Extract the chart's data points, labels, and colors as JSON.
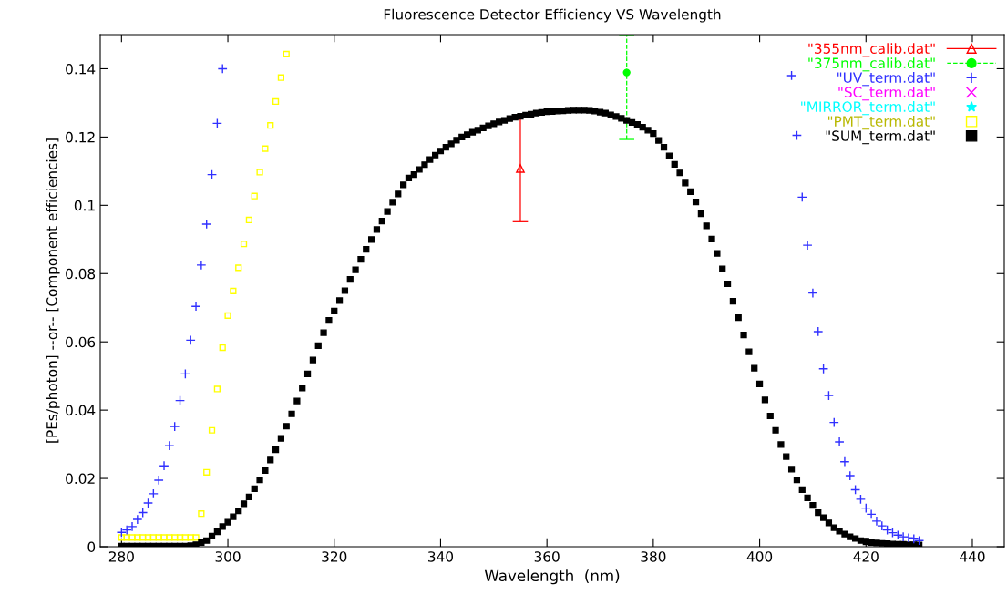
{
  "chart_data": {
    "type": "scatter",
    "title": "Fluorescence Detector Efficiency VS Wavelength",
    "xlabel": "Wavelength  (nm)",
    "ylabel": "[PEs/photon] --or-- [Component efficiencies]",
    "xlim": [
      276,
      446
    ],
    "ylim": [
      0,
      0.15
    ],
    "xticks": [
      280,
      300,
      320,
      340,
      360,
      380,
      400,
      420,
      440
    ],
    "yticks": [
      0,
      0.02,
      0.04,
      0.06,
      0.08,
      0.1,
      0.12,
      0.14
    ],
    "grid": false,
    "legend": "top right",
    "series": [
      {
        "name": "\"355nm_calib.dat\"",
        "color": "#ff0000",
        "marker": "triangle",
        "line_style": "solid",
        "x": [
          355
        ],
        "values": [
          0.1108
        ],
        "errors": [
          0.0156
        ]
      },
      {
        "name": "\"375nm_calib.dat\"",
        "color": "#00ff00",
        "marker": "circle",
        "line_style": "dashed",
        "x": [
          375
        ],
        "values": [
          0.1389
        ],
        "errors": [
          [
            0.1193,
            0.15
          ]
        ]
      },
      {
        "name": "\"UV_term.dat\"",
        "color": "#3030ff",
        "marker": "cross",
        "x": [
          280,
          281,
          282,
          283,
          284,
          285,
          286,
          287,
          288,
          289,
          290,
          291,
          292,
          293,
          294,
          295,
          296,
          297,
          298,
          299,
          406,
          407,
          408,
          409,
          410,
          411,
          412,
          413,
          414,
          415,
          416,
          417,
          418,
          419,
          420,
          421,
          422,
          423,
          424,
          425,
          426,
          427,
          428,
          429,
          430
        ],
        "values": [
          0.0042,
          0.0049,
          0.0059,
          0.008,
          0.01,
          0.0128,
          0.0155,
          0.0195,
          0.0237,
          0.0296,
          0.0352,
          0.0428,
          0.0506,
          0.0605,
          0.0704,
          0.0825,
          0.0945,
          0.109,
          0.124,
          0.14,
          0.138,
          0.1205,
          0.1024,
          0.0883,
          0.0743,
          0.063,
          0.0521,
          0.0443,
          0.0364,
          0.0307,
          0.0249,
          0.0208,
          0.0167,
          0.0139,
          0.0113,
          0.0095,
          0.0075,
          0.0061,
          0.0049,
          0.0041,
          0.0034,
          0.0029,
          0.0026,
          0.0023,
          0.0018
        ]
      },
      {
        "name": "\"SC_term.dat\"",
        "color": "#ff00ff",
        "marker": "x"
      },
      {
        "name": "\"MIRROR_term.dat\"",
        "color": "#00ffff",
        "marker": "star"
      },
      {
        "name": "\"PMT_term.dat\"",
        "color": "#ffff00",
        "marker": "square",
        "x": [
          280,
          281,
          282,
          283,
          284,
          285,
          286,
          287,
          288,
          289,
          290,
          291,
          292,
          293,
          294,
          295,
          296,
          297,
          298,
          299,
          300,
          301,
          302,
          303,
          304,
          305,
          306,
          307,
          308,
          309,
          310,
          311
        ],
        "values": [
          0.0027,
          0.0027,
          0.0027,
          0.0027,
          0.0027,
          0.0027,
          0.0027,
          0.0027,
          0.0027,
          0.0027,
          0.0027,
          0.0027,
          0.0027,
          0.0027,
          0.0027,
          0.0097,
          0.0218,
          0.0341,
          0.0462,
          0.0583,
          0.0677,
          0.0749,
          0.0817,
          0.0887,
          0.0957,
          0.1027,
          0.1097,
          0.1166,
          0.1234,
          0.1304,
          0.1374,
          0.1443
        ]
      },
      {
        "name": "\"SUM_term.dat\"",
        "color": "#000000",
        "marker": "square",
        "x": [
          280,
          281,
          282,
          283,
          284,
          285,
          286,
          287,
          288,
          289,
          290,
          291,
          292,
          293,
          294,
          295,
          296,
          297,
          298,
          299,
          300,
          301,
          302,
          303,
          304,
          305,
          306,
          307,
          308,
          309,
          310,
          311,
          312,
          313,
          314,
          315,
          316,
          317,
          318,
          319,
          320,
          321,
          322,
          323,
          324,
          325,
          326,
          327,
          328,
          329,
          330,
          331,
          332,
          333,
          334,
          335,
          336,
          337,
          338,
          339,
          340,
          341,
          342,
          343,
          344,
          345,
          346,
          347,
          348,
          349,
          350,
          351,
          352,
          353,
          354,
          355,
          356,
          357,
          358,
          359,
          360,
          361,
          362,
          363,
          364,
          365,
          366,
          367,
          368,
          369,
          370,
          371,
          372,
          373,
          374,
          375,
          376,
          377,
          378,
          379,
          380,
          381,
          382,
          383,
          384,
          385,
          386,
          387,
          388,
          389,
          390,
          391,
          392,
          393,
          394,
          395,
          396,
          397,
          398,
          399,
          400,
          401,
          402,
          403,
          404,
          405,
          406,
          407,
          408,
          409,
          410,
          411,
          412,
          413,
          414,
          415,
          416,
          417,
          418,
          419,
          420,
          421,
          422,
          423,
          424,
          425,
          426,
          427,
          428,
          429,
          430
        ],
        "values": [
          0.0002,
          0.0002,
          0.0002,
          0.0002,
          0.0002,
          0.0002,
          0.0002,
          0.0002,
          0.0002,
          0.0002,
          0.0002,
          0.0002,
          0.0002,
          0.0003,
          0.0006,
          0.0012,
          0.0018,
          0.0031,
          0.0044,
          0.0059,
          0.0072,
          0.0088,
          0.0105,
          0.0126,
          0.0146,
          0.017,
          0.0196,
          0.0223,
          0.0254,
          0.0284,
          0.0317,
          0.0353,
          0.0389,
          0.0427,
          0.0465,
          0.0506,
          0.0547,
          0.0589,
          0.0627,
          0.0663,
          0.069,
          0.0721,
          0.075,
          0.0783,
          0.0811,
          0.0842,
          0.0871,
          0.09,
          0.0929,
          0.0954,
          0.0982,
          0.1009,
          0.1033,
          0.106,
          0.108,
          0.109,
          0.1105,
          0.1119,
          0.1134,
          0.1147,
          0.1159,
          0.117,
          0.118,
          0.1191,
          0.12,
          0.1207,
          0.1214,
          0.122,
          0.1227,
          0.1233,
          0.1239,
          0.1244,
          0.1249,
          0.1254,
          0.1258,
          0.1261,
          0.1264,
          0.1267,
          0.127,
          0.1272,
          0.1274,
          0.1275,
          0.1276,
          0.1277,
          0.1278,
          0.1279,
          0.1279,
          0.1279,
          0.1278,
          0.1276,
          0.1273,
          0.127,
          0.1265,
          0.126,
          0.1255,
          0.1249,
          0.1243,
          0.1237,
          0.1229,
          0.122,
          0.121,
          0.119,
          0.117,
          0.1145,
          0.112,
          0.1095,
          0.1065,
          0.104,
          0.101,
          0.0975,
          0.094,
          0.0901,
          0.0859,
          0.0814,
          0.077,
          0.0719,
          0.0671,
          0.062,
          0.0571,
          0.0523,
          0.0477,
          0.043,
          0.0383,
          0.0341,
          0.0299,
          0.0264,
          0.0227,
          0.0196,
          0.0167,
          0.0143,
          0.0121,
          0.01,
          0.0085,
          0.007,
          0.0056,
          0.0046,
          0.0037,
          0.0029,
          0.0024,
          0.0018,
          0.0014,
          0.0012,
          0.0011,
          0.001,
          0.0009,
          0.0008,
          0.0007,
          0.0007,
          0.0006,
          0.0006,
          0.0005
        ]
      }
    ]
  }
}
